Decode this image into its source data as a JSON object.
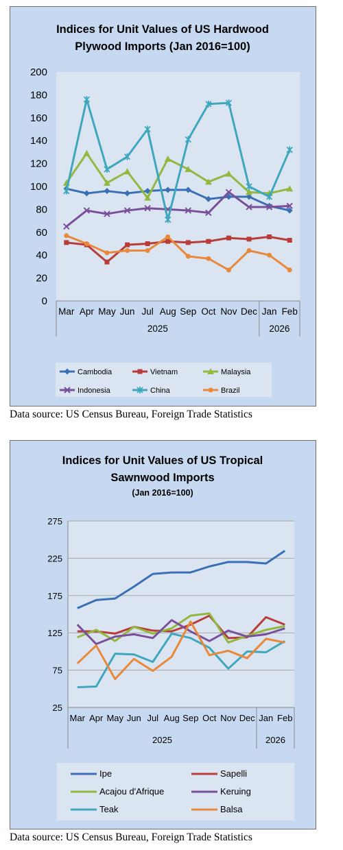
{
  "charts": [
    {
      "source": "Data source: US Census Bureau, Foreign Trade Statistics",
      "chart_data": {
        "type": "line",
        "title_lines": [
          "Indices for Unit Values of US Hardwood",
          "Plywood Imports (Jan 2016=100)"
        ],
        "categories": [
          "Mar",
          "Apr",
          "May",
          "Jun",
          "Jul",
          "Aug",
          "Sep",
          "Oct",
          "Nov",
          "Dec",
          "Jan",
          "Feb"
        ],
        "groups": [
          {
            "label": "2025",
            "span": 10
          },
          {
            "label": "2026",
            "span": 2
          }
        ],
        "ylim": [
          0,
          200
        ],
        "yticks": [
          "0",
          "20",
          "40",
          "60",
          "80",
          "100",
          "120",
          "140",
          "160",
          "180",
          "200"
        ],
        "legend_position": "bottom",
        "series": [
          {
            "name": "Cambodia",
            "color": "#3a6fb5",
            "marker": "diamond",
            "values": [
              98,
              94,
              96,
              94,
              96,
              97,
              97,
              89,
              91,
              91,
              83,
              79
            ]
          },
          {
            "name": "Vietnam",
            "color": "#b73c3a",
            "marker": "square",
            "values": [
              51,
              49,
              34,
              49,
              50,
              52,
              51,
              52,
              55,
              54,
              56,
              53
            ]
          },
          {
            "name": "Malaysia",
            "color": "#93b840",
            "marker": "triangle",
            "values": [
              103,
              129,
              103,
              113,
              90,
              124,
              115,
              104,
              111,
              95,
              94,
              98
            ]
          },
          {
            "name": "Indonesia",
            "color": "#7a4f9a",
            "marker": "x",
            "values": [
              65,
              79,
              76,
              79,
              81,
              80,
              79,
              77,
              95,
              82,
              82,
              83
            ]
          },
          {
            "name": "China",
            "color": "#3fa7bd",
            "marker": "star",
            "values": [
              96,
              176,
              115,
              126,
              150,
              71,
              141,
              172,
              173,
              100,
              91,
              132
            ]
          },
          {
            "name": "Brazil",
            "color": "#e8883a",
            "marker": "circle",
            "values": [
              57,
              50,
              42,
              44,
              44,
              56,
              39,
              37,
              27,
              44,
              40,
              27
            ]
          }
        ]
      }
    },
    {
      "source": "Data source: US Census Bureau, Foreign Trade Statistics",
      "chart_data": {
        "type": "line",
        "title_lines": [
          "Indices for Unit Values of US Tropical",
          "Sawnwood Imports"
        ],
        "subtitle": "(Jan 2016=100)",
        "categories": [
          "Mar",
          "Apr",
          "May",
          "Jun",
          "Jul",
          "Aug",
          "Sep",
          "Oct",
          "Nov",
          "Dec",
          "Jan",
          "Feb"
        ],
        "groups": [
          {
            "label": "2025",
            "span": 10
          },
          {
            "label": "2026",
            "span": 2
          }
        ],
        "ylim": [
          25,
          275
        ],
        "yticks": [
          "25",
          "75",
          "125",
          "175",
          "225",
          "275"
        ],
        "legend_position": "bottom",
        "series": [
          {
            "name": "Ipe",
            "color": "#3a6fb5",
            "values": [
              158,
              169,
              171,
              187,
              204,
              206,
              206,
              214,
              220,
              220,
              218,
              235
            ]
          },
          {
            "name": "Sapelli",
            "color": "#b73c3a",
            "values": [
              127,
              127,
              124,
              133,
              128,
              127,
              136,
              148,
              118,
              119,
              146,
              136
            ]
          },
          {
            "name": "Acajou d'Afrique",
            "color": "#93b840",
            "values": [
              119,
              129,
              114,
              133,
              124,
              131,
              148,
              151,
              112,
              121,
              129,
              134
            ]
          },
          {
            "name": "Keruing",
            "color": "#7a4f9a",
            "values": [
              136,
              110,
              120,
              123,
              118,
              142,
              127,
              114,
              128,
              120,
              123,
              131
            ]
          },
          {
            "name": "Teak",
            "color": "#3fa7bd",
            "values": [
              52,
              53,
              97,
              96,
              86,
              124,
              118,
              105,
              77,
              100,
              99,
              114
            ]
          },
          {
            "name": "Balsa",
            "color": "#e8883a",
            "values": [
              84,
              108,
              63,
              90,
              74,
              93,
              140,
              95,
              101,
              91,
              117,
              112
            ]
          }
        ]
      }
    }
  ]
}
